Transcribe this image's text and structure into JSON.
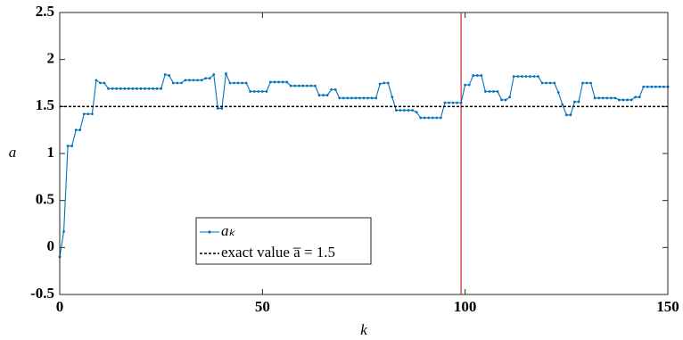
{
  "chart_data": {
    "type": "line",
    "xlabel": "k",
    "ylabel": "a",
    "xlim": [
      0,
      150
    ],
    "ylim": [
      -0.5,
      2.5
    ],
    "xticks": [
      0,
      50,
      100,
      150
    ],
    "yticks": [
      -0.5,
      0,
      0.5,
      1,
      1.5,
      2,
      2.5
    ],
    "vline": {
      "x": 99,
      "color": "#d62728"
    },
    "series": [
      {
        "name": "aₖ",
        "color": "#0072bd",
        "style": "solid-dots",
        "x": [
          0,
          1,
          2,
          3,
          4,
          5,
          6,
          7,
          8,
          9,
          10,
          11,
          12,
          13,
          14,
          15,
          16,
          17,
          18,
          19,
          20,
          21,
          22,
          23,
          24,
          25,
          26,
          27,
          28,
          29,
          30,
          31,
          32,
          33,
          34,
          35,
          36,
          37,
          38,
          39,
          40,
          41,
          42,
          43,
          44,
          45,
          46,
          47,
          48,
          49,
          50,
          51,
          52,
          53,
          54,
          55,
          56,
          57,
          58,
          59,
          60,
          61,
          62,
          63,
          64,
          65,
          66,
          67,
          68,
          69,
          70,
          71,
          72,
          73,
          74,
          75,
          76,
          77,
          78,
          79,
          80,
          81,
          82,
          83,
          84,
          85,
          86,
          87,
          88,
          89,
          90,
          91,
          92,
          93,
          94,
          95,
          96,
          97,
          98,
          99,
          100,
          101,
          102,
          103,
          104,
          105,
          106,
          107,
          108,
          109,
          110,
          111,
          112,
          113,
          114,
          115,
          116,
          117,
          118,
          119,
          120,
          121,
          122,
          123,
          124,
          125,
          126,
          127,
          128,
          129,
          130,
          131,
          132,
          133,
          134,
          135,
          136,
          137,
          138,
          139,
          140,
          141,
          142,
          143,
          144,
          145,
          146,
          147,
          148,
          149,
          150
        ],
        "values": [
          -0.1,
          0.17,
          1.08,
          1.08,
          1.25,
          1.25,
          1.42,
          1.42,
          1.42,
          1.78,
          1.75,
          1.75,
          1.69,
          1.69,
          1.69,
          1.69,
          1.69,
          1.69,
          1.69,
          1.69,
          1.69,
          1.69,
          1.69,
          1.69,
          1.69,
          1.69,
          1.84,
          1.83,
          1.75,
          1.75,
          1.75,
          1.78,
          1.78,
          1.78,
          1.78,
          1.78,
          1.8,
          1.8,
          1.84,
          1.48,
          1.48,
          1.85,
          1.75,
          1.75,
          1.75,
          1.75,
          1.75,
          1.66,
          1.66,
          1.66,
          1.66,
          1.66,
          1.76,
          1.76,
          1.76,
          1.76,
          1.76,
          1.72,
          1.72,
          1.72,
          1.72,
          1.72,
          1.72,
          1.72,
          1.62,
          1.62,
          1.62,
          1.68,
          1.68,
          1.59,
          1.59,
          1.59,
          1.59,
          1.59,
          1.59,
          1.59,
          1.59,
          1.59,
          1.59,
          1.74,
          1.75,
          1.75,
          1.6,
          1.46,
          1.46,
          1.46,
          1.46,
          1.46,
          1.44,
          1.38,
          1.38,
          1.38,
          1.38,
          1.38,
          1.38,
          1.54,
          1.54,
          1.54,
          1.54,
          1.54,
          1.73,
          1.73,
          1.83,
          1.83,
          1.83,
          1.66,
          1.66,
          1.66,
          1.66,
          1.57,
          1.57,
          1.6,
          1.82,
          1.82,
          1.82,
          1.82,
          1.82,
          1.82,
          1.82,
          1.75,
          1.75,
          1.75,
          1.75,
          1.65,
          1.52,
          1.41,
          1.41,
          1.55,
          1.55,
          1.75,
          1.75,
          1.75,
          1.59,
          1.59,
          1.59,
          1.59,
          1.59,
          1.59,
          1.57,
          1.57,
          1.57,
          1.57,
          1.6,
          1.6,
          1.71,
          1.71,
          1.71,
          1.71,
          1.71,
          1.71,
          1.71
        ]
      },
      {
        "name": "exact value a̅ = 1.5",
        "color": "#000000",
        "style": "dashed",
        "x": [
          0,
          150
        ],
        "values": [
          1.5,
          1.5
        ]
      }
    ]
  }
}
